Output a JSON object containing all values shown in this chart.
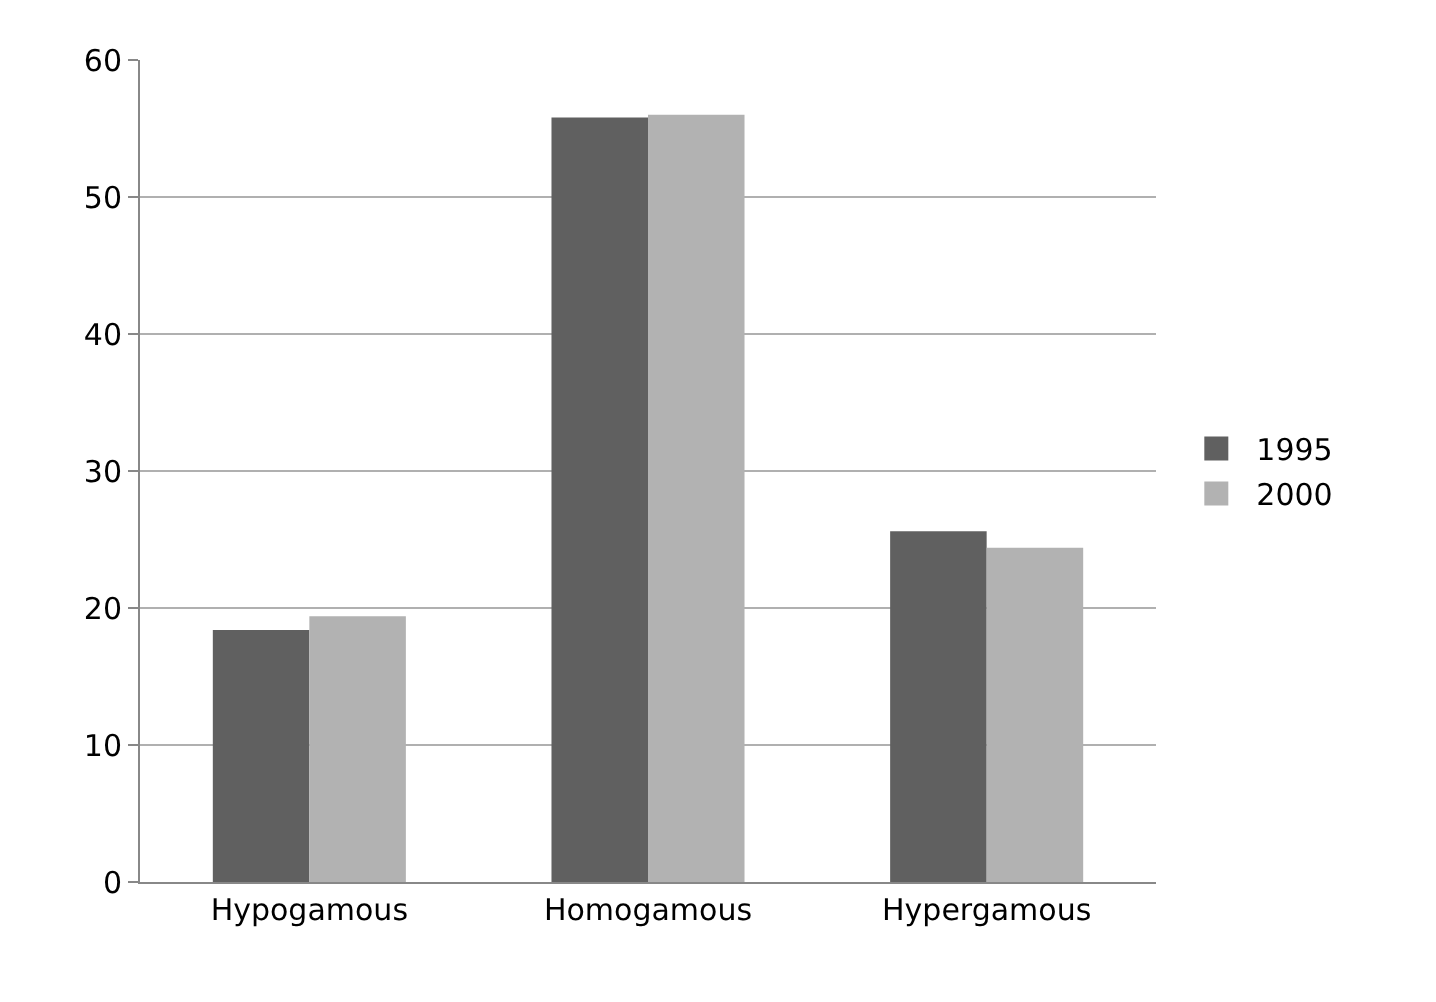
{
  "chart_data": {
    "type": "bar",
    "categories": [
      "Hypogamous",
      "Homogamous",
      "Hypergamous"
    ],
    "series": [
      {
        "name": "1995",
        "color": "#606060",
        "values": [
          18.4,
          55.8,
          25.6
        ]
      },
      {
        "name": "2000",
        "color": "#b2b2b2",
        "values": [
          19.4,
          56.0,
          24.4
        ]
      }
    ],
    "ylim": [
      0,
      60
    ],
    "yticks": [
      0,
      10,
      20,
      30,
      40,
      50,
      60
    ],
    "grid": "y",
    "legend": "right"
  }
}
